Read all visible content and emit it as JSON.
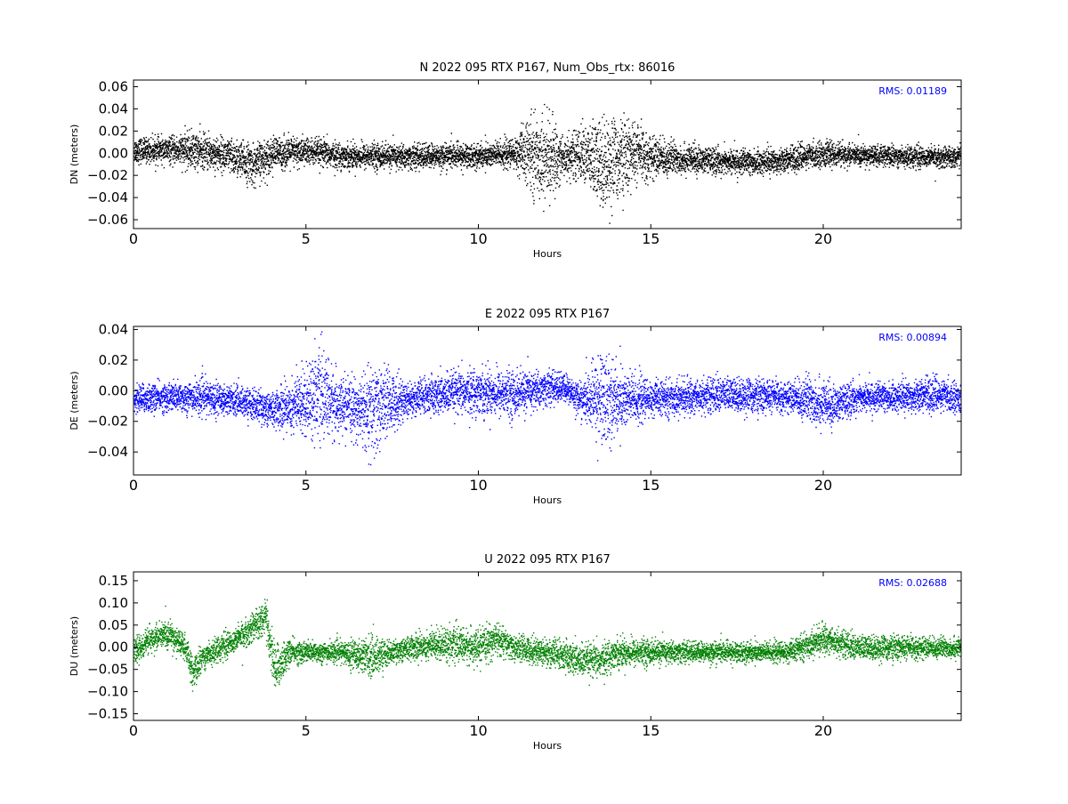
{
  "chart_data": [
    {
      "type": "scatter",
      "title": "N 2022 095 RTX  P167, Num_Obs_rtx: 86016",
      "xlabel": "Hours",
      "ylabel": "DN (meters)",
      "xlim": [
        0,
        24
      ],
      "ylim": [
        -0.068,
        0.066
      ],
      "xticks": [
        0,
        5,
        10,
        15,
        20
      ],
      "yticks": [
        -0.06,
        -0.04,
        -0.02,
        0.0,
        0.02,
        0.04,
        0.06
      ],
      "ytick_labels": [
        "−0.06",
        "−0.04",
        "−0.02",
        "0.00",
        "0.02",
        "0.04",
        "0.06"
      ],
      "annotation": "RMS:  0.01189",
      "rms": 0.01189,
      "num_obs": 86016,
      "color": "#000000",
      "annotation_color": "#0000ff",
      "grid": false,
      "envelope": {
        "hours": [
          0,
          1,
          1.7,
          2.5,
          3.5,
          4,
          5,
          6,
          7,
          8,
          9,
          10,
          11,
          11.5,
          12,
          12.5,
          13,
          13.5,
          14,
          14.5,
          15,
          16,
          17,
          18,
          19,
          20,
          21,
          22,
          23,
          24
        ],
        "amplitude": [
          0.012,
          0.012,
          0.018,
          0.016,
          0.02,
          0.016,
          0.014,
          0.012,
          0.012,
          0.012,
          0.012,
          0.012,
          0.014,
          0.035,
          0.04,
          0.02,
          0.025,
          0.045,
          0.04,
          0.03,
          0.02,
          0.014,
          0.012,
          0.012,
          0.012,
          0.012,
          0.01,
          0.01,
          0.01,
          0.01
        ],
        "mean": [
          0.003,
          0.003,
          0.003,
          0.0,
          -0.01,
          0.0,
          0.002,
          -0.002,
          -0.002,
          -0.003,
          -0.002,
          -0.002,
          0.0,
          0.0,
          -0.005,
          -0.003,
          0.0,
          -0.01,
          -0.005,
          0.0,
          -0.003,
          -0.005,
          -0.007,
          -0.008,
          -0.005,
          0.0,
          -0.002,
          -0.002,
          -0.003,
          -0.003
        ]
      }
    },
    {
      "type": "scatter",
      "title": "E 2022 095 RTX  P167",
      "xlabel": "Hours",
      "ylabel": "DE (meters)",
      "xlim": [
        0,
        24
      ],
      "ylim": [
        -0.055,
        0.042
      ],
      "xticks": [
        0,
        5,
        10,
        15,
        20
      ],
      "yticks": [
        -0.04,
        -0.02,
        0.0,
        0.02,
        0.04
      ],
      "ytick_labels": [
        "−0.04",
        "−0.02",
        "0.00",
        "0.02",
        "0.04"
      ],
      "annotation": "RMS:  0.00894",
      "rms": 0.00894,
      "color": "#0000ff",
      "annotation_color": "#0000ff",
      "grid": false,
      "envelope": {
        "hours": [
          0,
          1,
          2,
          3,
          4,
          4.5,
          5,
          5.3,
          5.6,
          6,
          6.5,
          6.9,
          7.2,
          8,
          9,
          10,
          11,
          12,
          12.5,
          13,
          13.6,
          14,
          15,
          16,
          17,
          18,
          19,
          19.7,
          20.2,
          21,
          22,
          23,
          24
        ],
        "amplitude": [
          0.01,
          0.01,
          0.012,
          0.01,
          0.012,
          0.018,
          0.025,
          0.03,
          0.028,
          0.018,
          0.02,
          0.035,
          0.025,
          0.012,
          0.014,
          0.016,
          0.016,
          0.012,
          0.01,
          0.012,
          0.035,
          0.025,
          0.012,
          0.012,
          0.012,
          0.012,
          0.01,
          0.018,
          0.014,
          0.01,
          0.01,
          0.012,
          0.01
        ],
        "mean": [
          -0.005,
          -0.004,
          -0.004,
          -0.006,
          -0.012,
          -0.01,
          -0.006,
          0.0,
          -0.006,
          -0.01,
          -0.012,
          -0.014,
          -0.008,
          -0.005,
          -0.002,
          0.0,
          -0.002,
          0.002,
          0.002,
          -0.006,
          -0.004,
          -0.006,
          -0.005,
          -0.004,
          -0.002,
          -0.003,
          -0.004,
          -0.006,
          -0.01,
          -0.004,
          -0.004,
          -0.002,
          -0.004
        ]
      }
    },
    {
      "type": "scatter",
      "title": "U 2022 095 RTX  P167",
      "xlabel": "Hours",
      "ylabel": "DU (meters)",
      "xlim": [
        0,
        24
      ],
      "ylim": [
        -0.165,
        0.17
      ],
      "xticks": [
        0,
        5,
        10,
        15,
        20
      ],
      "yticks": [
        -0.15,
        -0.1,
        -0.05,
        0.0,
        0.05,
        0.1,
        0.15
      ],
      "ytick_labels": [
        "−0.15",
        "−0.10",
        "−0.05",
        "0.00",
        "0.05",
        "0.10",
        "0.15"
      ],
      "annotation": "RMS:  0.02688",
      "rms": 0.02688,
      "color": "#008000",
      "annotation_color": "#0000ff",
      "grid": false,
      "envelope": {
        "hours": [
          0,
          0.5,
          1,
          1.5,
          1.7,
          2,
          2.5,
          3,
          3.5,
          3.8,
          4.1,
          4.5,
          5,
          6,
          6.9,
          7.5,
          8,
          9,
          10,
          10.5,
          11,
          12,
          13,
          13.5,
          14,
          15,
          16,
          17,
          18,
          19,
          20,
          21,
          22,
          23,
          24
        ],
        "amplitude": [
          0.03,
          0.03,
          0.035,
          0.03,
          0.04,
          0.03,
          0.03,
          0.03,
          0.035,
          0.045,
          0.06,
          0.03,
          0.025,
          0.025,
          0.05,
          0.025,
          0.03,
          0.04,
          0.04,
          0.04,
          0.03,
          0.035,
          0.04,
          0.04,
          0.035,
          0.03,
          0.025,
          0.025,
          0.025,
          0.025,
          0.035,
          0.03,
          0.03,
          0.025,
          0.025
        ],
        "mean": [
          -0.01,
          0.02,
          0.03,
          0.0,
          -0.06,
          -0.02,
          0.0,
          0.02,
          0.05,
          0.07,
          -0.05,
          -0.01,
          -0.01,
          -0.01,
          -0.02,
          -0.01,
          0.0,
          0.01,
          0.0,
          0.02,
          0.0,
          -0.01,
          -0.03,
          -0.03,
          -0.01,
          -0.01,
          -0.01,
          -0.01,
          -0.01,
          -0.01,
          0.02,
          0.0,
          0.0,
          0.0,
          0.0
        ]
      }
    }
  ]
}
